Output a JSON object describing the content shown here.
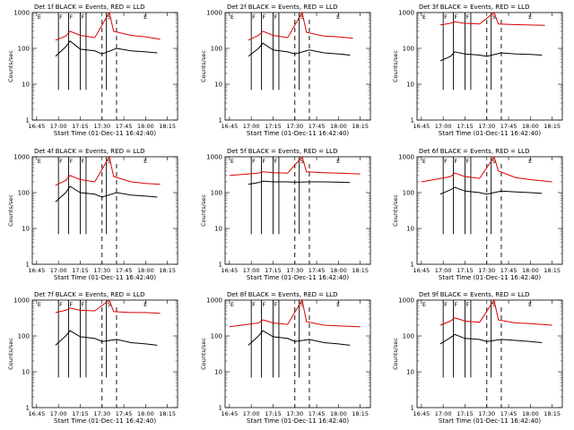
{
  "shared": {
    "x_ticks": [
      "16:45",
      "17:00",
      "17:15",
      "17:30",
      "17:45",
      "18:00",
      "18:15"
    ],
    "y_ticks": [
      "1",
      "10",
      "100",
      "1000"
    ],
    "ylabel": "Counts/sec",
    "xlabel": "Start Time (01-Dec-11 16:42:40)",
    "markers": [
      "E",
      "F",
      "F",
      "F",
      "S",
      "E"
    ],
    "colors": {
      "events": "#000000",
      "lld": "#dd0000"
    }
  },
  "chart_data": [
    {
      "type": "line",
      "title": "Det 1f BLACK = Events, RED = LLD",
      "xlabel": "Start Time (01-Dec-11 16:42:40)",
      "ylabel": "Counts/sec",
      "ylog": true,
      "ylim": [
        1,
        1000
      ],
      "series": [
        {
          "name": "Events",
          "color": "#000000",
          "points": [
            [
              "16:58",
              60
            ],
            [
              "17:05",
              110
            ],
            [
              "17:08",
              160
            ],
            [
              "17:15",
              95
            ],
            [
              "17:25",
              85
            ],
            [
              "17:30",
              70
            ],
            [
              "17:40",
              100
            ],
            [
              "17:50",
              85
            ],
            [
              "18:00",
              80
            ],
            [
              "18:08",
              75
            ]
          ]
        },
        {
          "name": "LLD",
          "color": "#dd0000",
          "points": [
            [
              "16:58",
              170
            ],
            [
              "17:05",
              220
            ],
            [
              "17:08",
              300
            ],
            [
              "17:15",
              230
            ],
            [
              "17:25",
              200
            ],
            [
              "17:35",
              1000
            ],
            [
              "17:38",
              300
            ],
            [
              "17:50",
              230
            ],
            [
              "18:00",
              210
            ],
            [
              "18:10",
              180
            ]
          ]
        }
      ]
    },
    {
      "type": "line",
      "title": "Det 2f BLACK = Events, RED = LLD",
      "xlabel": "Start Time (01-Dec-11 16:42:40)",
      "ylabel": "Counts/sec",
      "ylog": true,
      "ylim": [
        1,
        1000
      ],
      "series": [
        {
          "name": "Events",
          "color": "#000000",
          "points": [
            [
              "16:58",
              60
            ],
            [
              "17:05",
              100
            ],
            [
              "17:08",
              140
            ],
            [
              "17:15",
              90
            ],
            [
              "17:25",
              80
            ],
            [
              "17:30",
              70
            ],
            [
              "17:40",
              90
            ],
            [
              "17:50",
              75
            ],
            [
              "18:00",
              70
            ],
            [
              "18:08",
              65
            ]
          ]
        },
        {
          "name": "LLD",
          "color": "#dd0000",
          "points": [
            [
              "16:58",
              170
            ],
            [
              "17:05",
              230
            ],
            [
              "17:08",
              300
            ],
            [
              "17:15",
              230
            ],
            [
              "17:25",
              200
            ],
            [
              "17:35",
              1000
            ],
            [
              "17:38",
              280
            ],
            [
              "17:50",
              220
            ],
            [
              "18:00",
              210
            ],
            [
              "18:10",
              190
            ]
          ]
        }
      ]
    },
    {
      "type": "line",
      "title": "Det 3f BLACK = Events, RED = LLD",
      "xlabel": "Start Time (01-Dec-11 16:42:40)",
      "ylabel": "Counts/sec",
      "ylog": true,
      "ylim": [
        1,
        1000
      ],
      "series": [
        {
          "name": "Events",
          "color": "#000000",
          "points": [
            [
              "16:58",
              45
            ],
            [
              "17:05",
              60
            ],
            [
              "17:08",
              80
            ],
            [
              "17:15",
              70
            ],
            [
              "17:25",
              65
            ],
            [
              "17:30",
              60
            ],
            [
              "17:40",
              75
            ],
            [
              "17:50",
              70
            ],
            [
              "18:00",
              68
            ],
            [
              "18:08",
              65
            ]
          ]
        },
        {
          "name": "LLD",
          "color": "#dd0000",
          "points": [
            [
              "16:58",
              450
            ],
            [
              "17:05",
              500
            ],
            [
              "17:08",
              550
            ],
            [
              "17:15",
              500
            ],
            [
              "17:25",
              480
            ],
            [
              "17:35",
              1000
            ],
            [
              "17:38",
              480
            ],
            [
              "17:50",
              460
            ],
            [
              "18:00",
              450
            ],
            [
              "18:10",
              440
            ]
          ]
        }
      ]
    },
    {
      "type": "line",
      "title": "Det 4f BLACK = Events, RED = LLD",
      "xlabel": "Start Time (01-Dec-11 16:42:40)",
      "ylabel": "Counts/sec",
      "ylog": true,
      "ylim": [
        1,
        1000
      ],
      "series": [
        {
          "name": "Events",
          "color": "#000000",
          "points": [
            [
              "16:58",
              55
            ],
            [
              "17:05",
              100
            ],
            [
              "17:08",
              150
            ],
            [
              "17:15",
              100
            ],
            [
              "17:25",
              90
            ],
            [
              "17:30",
              75
            ],
            [
              "17:40",
              100
            ],
            [
              "17:50",
              85
            ],
            [
              "18:00",
              80
            ],
            [
              "18:08",
              75
            ]
          ]
        },
        {
          "name": "LLD",
          "color": "#dd0000",
          "points": [
            [
              "16:58",
              160
            ],
            [
              "17:05",
              220
            ],
            [
              "17:08",
              300
            ],
            [
              "17:15",
              230
            ],
            [
              "17:25",
              200
            ],
            [
              "17:35",
              1000
            ],
            [
              "17:38",
              280
            ],
            [
              "17:50",
              200
            ],
            [
              "18:00",
              180
            ],
            [
              "18:10",
              170
            ]
          ]
        }
      ]
    },
    {
      "type": "line",
      "title": "Det 5f BLACK = Events, RED = LLD",
      "xlabel": "Start Time (01-Dec-11 16:42:40)",
      "ylabel": "Counts/sec",
      "ylog": true,
      "ylim": [
        1,
        1000
      ],
      "series": [
        {
          "name": "Events",
          "color": "#000000",
          "points": [
            [
              "16:58",
              170
            ],
            [
              "17:05",
              190
            ],
            [
              "17:08",
              210
            ],
            [
              "17:15",
              200
            ],
            [
              "17:25",
              200
            ],
            [
              "17:30",
              195
            ],
            [
              "17:40",
              200
            ],
            [
              "17:50",
              200
            ],
            [
              "18:00",
              195
            ],
            [
              "18:08",
              190
            ]
          ]
        },
        {
          "name": "LLD",
          "color": "#dd0000",
          "points": [
            [
              "16:45",
              300
            ],
            [
              "17:05",
              350
            ],
            [
              "17:08",
              380
            ],
            [
              "17:15",
              360
            ],
            [
              "17:25",
              350
            ],
            [
              "17:35",
              1000
            ],
            [
              "17:38",
              380
            ],
            [
              "17:50",
              360
            ],
            [
              "18:00",
              350
            ],
            [
              "18:15",
              330
            ]
          ]
        }
      ]
    },
    {
      "type": "line",
      "title": "Det 6f BLACK = Events, RED = LLD",
      "xlabel": "Start Time (01-Dec-11 16:42:40)",
      "ylabel": "Counts/sec",
      "ylog": true,
      "ylim": [
        1,
        1000
      ],
      "series": [
        {
          "name": "Events",
          "color": "#000000",
          "points": [
            [
              "16:58",
              90
            ],
            [
              "17:05",
              120
            ],
            [
              "17:08",
              140
            ],
            [
              "17:15",
              110
            ],
            [
              "17:25",
              100
            ],
            [
              "17:30",
              90
            ],
            [
              "17:40",
              110
            ],
            [
              "17:50",
              105
            ],
            [
              "18:00",
              100
            ],
            [
              "18:08",
              95
            ]
          ]
        },
        {
          "name": "LLD",
          "color": "#dd0000",
          "points": [
            [
              "16:45",
              200
            ],
            [
              "17:05",
              280
            ],
            [
              "17:08",
              350
            ],
            [
              "17:15",
              280
            ],
            [
              "17:25",
              250
            ],
            [
              "17:35",
              1000
            ],
            [
              "17:38",
              400
            ],
            [
              "17:50",
              260
            ],
            [
              "18:00",
              230
            ],
            [
              "18:15",
              200
            ]
          ]
        }
      ]
    },
    {
      "type": "line",
      "title": "Det 7f BLACK = Events, RED = LLD",
      "xlabel": "Start Time (01-Dec-11 16:42:40)",
      "ylabel": "Counts/sec",
      "ylog": true,
      "ylim": [
        1,
        1000
      ],
      "series": [
        {
          "name": "Events",
          "color": "#000000",
          "points": [
            [
              "16:58",
              55
            ],
            [
              "17:05",
              100
            ],
            [
              "17:08",
              140
            ],
            [
              "17:15",
              95
            ],
            [
              "17:25",
              85
            ],
            [
              "17:30",
              70
            ],
            [
              "17:40",
              80
            ],
            [
              "17:50",
              65
            ],
            [
              "18:00",
              60
            ],
            [
              "18:08",
              55
            ]
          ]
        },
        {
          "name": "LLD",
          "color": "#dd0000",
          "points": [
            [
              "16:58",
              450
            ],
            [
              "17:05",
              520
            ],
            [
              "17:08",
              600
            ],
            [
              "17:15",
              520
            ],
            [
              "17:25",
              500
            ],
            [
              "17:35",
              1000
            ],
            [
              "17:38",
              480
            ],
            [
              "17:50",
              450
            ],
            [
              "18:00",
              450
            ],
            [
              "18:10",
              430
            ]
          ]
        }
      ]
    },
    {
      "type": "line",
      "title": "Det 8f BLACK = Events, RED = LLD",
      "xlabel": "Start Time (01-Dec-11 16:42:40)",
      "ylabel": "Counts/sec",
      "ylog": true,
      "ylim": [
        1,
        1000
      ],
      "series": [
        {
          "name": "Events",
          "color": "#000000",
          "points": [
            [
              "16:58",
              55
            ],
            [
              "17:05",
              100
            ],
            [
              "17:08",
              140
            ],
            [
              "17:15",
              95
            ],
            [
              "17:25",
              85
            ],
            [
              "17:30",
              70
            ],
            [
              "17:40",
              80
            ],
            [
              "17:50",
              65
            ],
            [
              "18:00",
              60
            ],
            [
              "18:08",
              55
            ]
          ]
        },
        {
          "name": "LLD",
          "color": "#dd0000",
          "points": [
            [
              "16:45",
              180
            ],
            [
              "17:05",
              230
            ],
            [
              "17:08",
              280
            ],
            [
              "17:15",
              230
            ],
            [
              "17:25",
              210
            ],
            [
              "17:35",
              1000
            ],
            [
              "17:38",
              250
            ],
            [
              "17:50",
              200
            ],
            [
              "18:00",
              190
            ],
            [
              "18:15",
              180
            ]
          ]
        }
      ]
    },
    {
      "type": "line",
      "title": "Det 9f BLACK = Events, RED = LLD",
      "xlabel": "Start Time (01-Dec-11 16:42:40)",
      "ylabel": "Counts/sec",
      "ylog": true,
      "ylim": [
        1,
        1000
      ],
      "series": [
        {
          "name": "Events",
          "color": "#000000",
          "points": [
            [
              "16:58",
              60
            ],
            [
              "17:05",
              90
            ],
            [
              "17:08",
              110
            ],
            [
              "17:15",
              85
            ],
            [
              "17:25",
              80
            ],
            [
              "17:30",
              70
            ],
            [
              "17:40",
              80
            ],
            [
              "17:50",
              75
            ],
            [
              "18:00",
              70
            ],
            [
              "18:08",
              65
            ]
          ]
        },
        {
          "name": "LLD",
          "color": "#dd0000",
          "points": [
            [
              "16:58",
              200
            ],
            [
              "17:05",
              260
            ],
            [
              "17:08",
              320
            ],
            [
              "17:15",
              260
            ],
            [
              "17:25",
              240
            ],
            [
              "17:35",
              1000
            ],
            [
              "17:38",
              280
            ],
            [
              "17:50",
              230
            ],
            [
              "18:00",
              220
            ],
            [
              "18:15",
              200
            ]
          ]
        }
      ]
    }
  ]
}
